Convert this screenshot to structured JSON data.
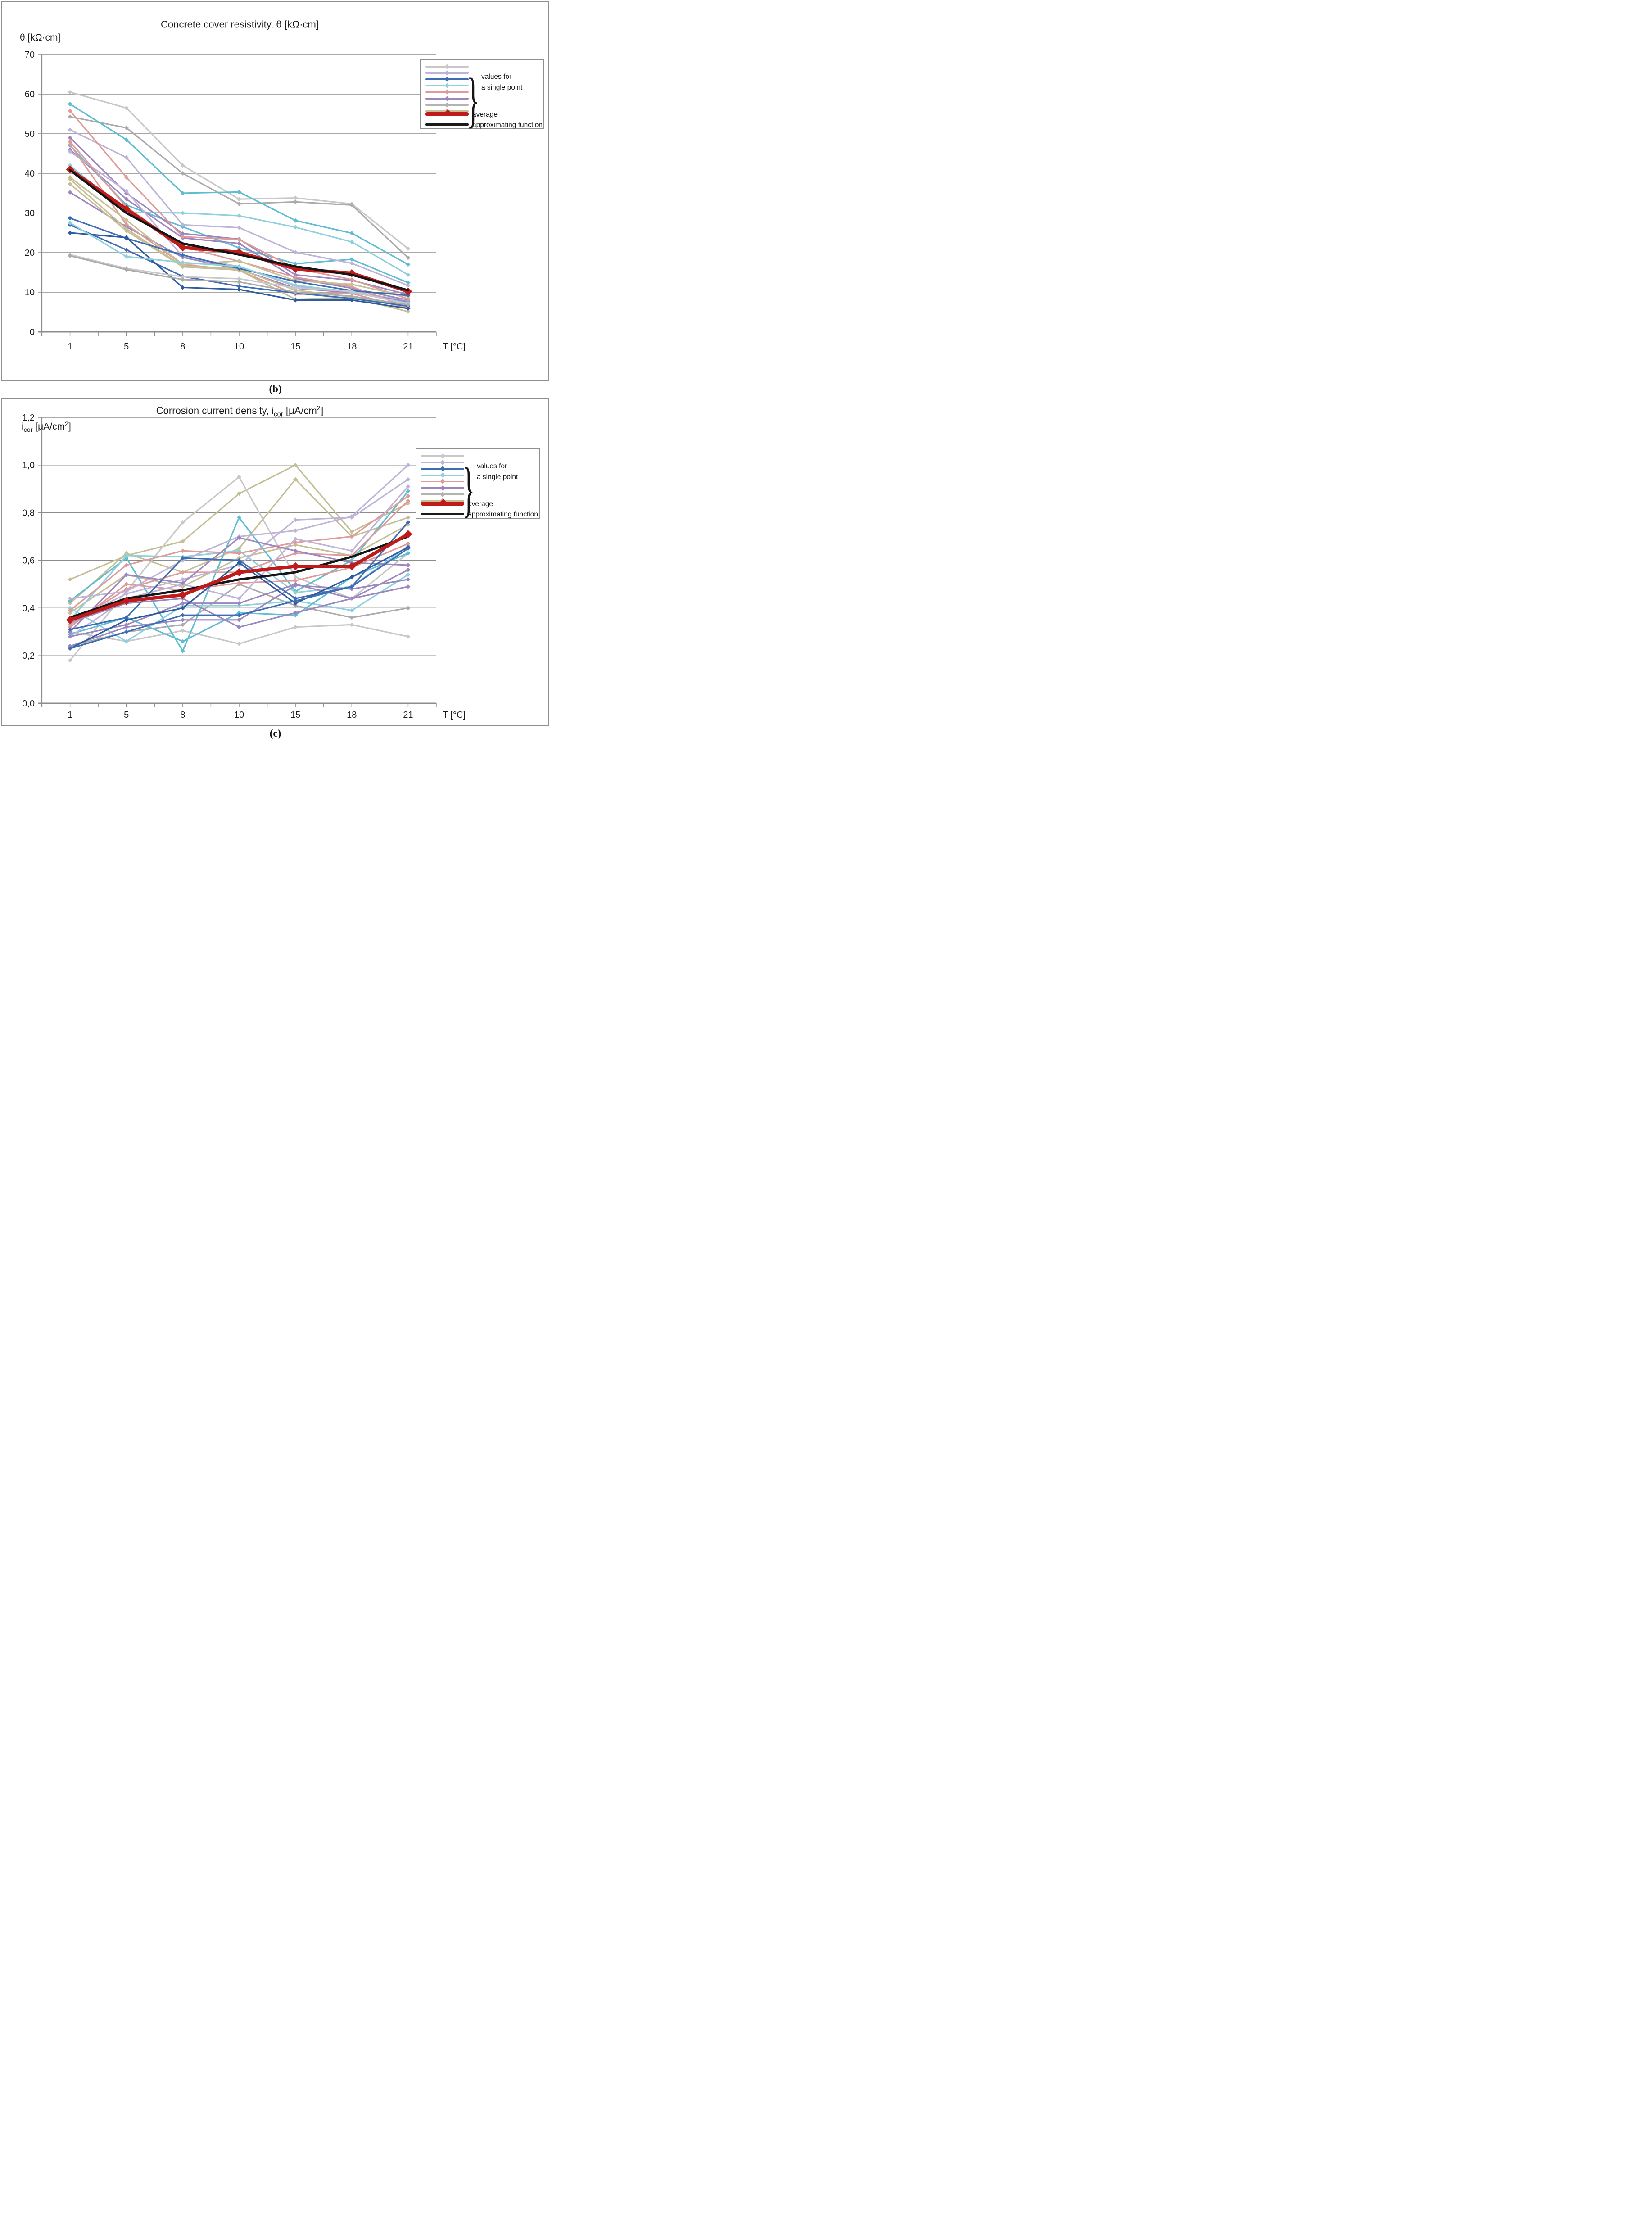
{
  "page": {
    "caption_b": "(b)",
    "caption_c": "(c)"
  },
  "chart_data": [
    {
      "type": "line",
      "title_parts": {
        "pre": "Concrete cover resistivity, θ [kΩ·cm]",
        "sub": "",
        "post": "",
        "sup": "",
        "end": ""
      },
      "y_axis_label_parts": {
        "pre": "θ [kΩ·cm]",
        "sub": "",
        "post": "",
        "sup": "",
        "end": ""
      },
      "x_axis_label": "T [°C]",
      "caption": "(b)",
      "categories": [
        "1",
        "5",
        "8",
        "10",
        "15",
        "18",
        "21"
      ],
      "x_values": [
        1,
        5,
        8,
        10,
        15,
        18,
        21
      ],
      "y_ticks": [
        "70",
        "60",
        "50",
        "40",
        "30",
        "20",
        "10",
        "0"
      ],
      "ylim": [
        0,
        70
      ],
      "y_step": 10,
      "grid": true,
      "legend": {
        "position": "top-right",
        "group_label": {
          "line1": "values for",
          "line2": "a single point"
        },
        "average_label": "average",
        "approx_label": "approximating function",
        "swatch_colors": [
          "#c8c8c8",
          "#beb3d8",
          "#3e6db5",
          "#8fd0dd",
          "#de9b99",
          "#9b86c0",
          "#b3b3b3",
          "#c6be94"
        ]
      },
      "series": [
        {
          "name": "single-point",
          "color": "#c8c8c8",
          "values": [
            60.5,
            56.5,
            42,
            33.5,
            33.8,
            32.3,
            21
          ]
        },
        {
          "name": "single-point",
          "color": "#ababab",
          "values": [
            54.3,
            51.5,
            40,
            32.3,
            32.8,
            32.0,
            18.7
          ]
        },
        {
          "name": "single-point",
          "color": "#5fbdd1",
          "values": [
            57.5,
            48.5,
            35,
            35.3,
            28.1,
            24.9,
            17.0
          ]
        },
        {
          "name": "single-point",
          "color": "#8fd0dd",
          "values": [
            42,
            30.2,
            30,
            29.3,
            26.4,
            22.7,
            14.4
          ]
        },
        {
          "name": "single-point",
          "color": "#5fbdd1",
          "values": [
            47,
            32,
            26.5,
            21.2,
            17.2,
            18.3,
            12.4
          ]
        },
        {
          "name": "single-point",
          "color": "#beb3d8",
          "values": [
            51,
            44,
            27,
            26.3,
            20.1,
            17.3,
            11.7
          ]
        },
        {
          "name": "single-point",
          "color": "#9b86c0",
          "values": [
            49,
            35,
            24.8,
            23.4,
            14.4,
            13.0,
            9.4
          ]
        },
        {
          "name": "single-point",
          "color": "#9b86c0",
          "values": [
            46,
            33.5,
            23.7,
            22.3,
            13.5,
            11.0,
            8.0
          ]
        },
        {
          "name": "single-point",
          "color": "#beb3d8",
          "values": [
            45.5,
            35.5,
            19.0,
            16.5,
            11.5,
            10.2,
            7.8
          ]
        },
        {
          "name": "single-point",
          "color": "#9b86c0",
          "values": [
            35.2,
            26.5,
            18.8,
            15.8,
            11.0,
            9.9,
            7.6
          ]
        },
        {
          "name": "single-point",
          "color": "#de9b99",
          "values": [
            55.8,
            39,
            24.0,
            23.3,
            16.0,
            13.2,
            8.3
          ]
        },
        {
          "name": "single-point",
          "color": "#de9b99",
          "values": [
            48,
            31.5,
            21.5,
            17.8,
            13.8,
            11.4,
            6.2
          ]
        },
        {
          "name": "single-point",
          "color": "#de9b99",
          "values": [
            47.3,
            27.1,
            17.0,
            15.5,
            9.5,
            9.7,
            5.9
          ]
        },
        {
          "name": "single-point",
          "color": "#c6be94",
          "values": [
            39,
            28.2,
            17.0,
            17.9,
            12.9,
            12.0,
            8.9
          ]
        },
        {
          "name": "single-point",
          "color": "#c6be94",
          "values": [
            38.5,
            26.0,
            16.6,
            15.9,
            10.5,
            8.8,
            6.6
          ]
        },
        {
          "name": "single-point",
          "color": "#c6be94",
          "values": [
            37.3,
            25.5,
            16.4,
            15.6,
            8.2,
            8.7,
            5.1
          ]
        },
        {
          "name": "single-point",
          "color": "#3e6db5",
          "values": [
            28.7,
            23.6,
            19.4,
            16.0,
            12.7,
            10.4,
            9.2
          ]
        },
        {
          "name": "single-point",
          "color": "#3e6db5",
          "values": [
            27.0,
            20.7,
            14.0,
            11.5,
            9.8,
            8.4,
            6.5
          ]
        },
        {
          "name": "single-point",
          "color": "#2e5b9e",
          "values": [
            25.0,
            23.8,
            11.2,
            10.7,
            8.0,
            8.0,
            5.9
          ]
        },
        {
          "name": "single-point",
          "color": "#8fd0dd",
          "values": [
            27.5,
            19.0,
            17.5,
            16.5,
            11.8,
            10.0,
            7.2
          ]
        },
        {
          "name": "single-point",
          "color": "#c8c8c8",
          "values": [
            19.5,
            16.0,
            13.9,
            13.4,
            11.1,
            10.2,
            7.0
          ]
        },
        {
          "name": "single-point",
          "color": "#ababab",
          "values": [
            19.2,
            15.7,
            13.2,
            12.6,
            10.0,
            9.0,
            6.8
          ]
        }
      ],
      "average": {
        "name": "average",
        "color": "#bf1b1b",
        "values": [
          41,
          31,
          21.3,
          20.1,
          15.9,
          14.8,
          10.2
        ]
      },
      "approximating_function": {
        "name": "approximating function",
        "color": "#151515",
        "values": [
          40.8,
          30.0,
          22.3,
          19.5,
          16.5,
          14.4,
          10.5
        ]
      }
    },
    {
      "type": "line",
      "title_parts": {
        "pre": "Corrosion current density, i",
        "sub": "cor",
        "post": " [μA/cm",
        "sup": "2",
        "end": "]"
      },
      "y_axis_label_parts": {
        "pre": "i",
        "sub": "cor",
        "post": " [μA/cm",
        "sup": "2",
        "end": "]"
      },
      "x_axis_label": "T [°C]",
      "caption": "(c)",
      "categories": [
        "1",
        "5",
        "8",
        "10",
        "15",
        "18",
        "21"
      ],
      "x_values": [
        1,
        5,
        8,
        10,
        15,
        18,
        21
      ],
      "y_ticks": [
        "1,2",
        "1,0",
        "0,8",
        "0,6",
        "0,4",
        "0,2",
        "0,0"
      ],
      "ylim": [
        0,
        1.2
      ],
      "y_step": 0.2,
      "grid": true,
      "legend": {
        "position": "top-right",
        "group_label": {
          "line1": "values for",
          "line2": "a single point"
        },
        "average_label": "average",
        "approx_label": "approximating function",
        "swatch_colors": [
          "#c8c8c8",
          "#beb3d8",
          "#3e6db5",
          "#8fd0dd",
          "#de9b99",
          "#9b86c0",
          "#b3b3b3",
          "#c6be94"
        ]
      },
      "series": [
        {
          "name": "single-point",
          "color": "#c6be94",
          "values": [
            0.52,
            0.62,
            0.68,
            0.88,
            1.0,
            0.72,
            0.84
          ]
        },
        {
          "name": "single-point",
          "color": "#c6be94",
          "values": [
            0.42,
            0.63,
            0.55,
            0.65,
            0.94,
            0.7,
            0.78
          ]
        },
        {
          "name": "single-point",
          "color": "#c6be94",
          "values": [
            0.38,
            0.54,
            0.49,
            0.61,
            0.665,
            0.62,
            0.75
          ]
        },
        {
          "name": "single-point",
          "color": "#c8c8c8",
          "values": [
            0.18,
            0.47,
            0.76,
            0.95,
            0.53,
            0.44,
            0.63
          ]
        },
        {
          "name": "single-point",
          "color": "#ababab",
          "values": [
            0.24,
            0.3,
            0.33,
            0.5,
            0.41,
            0.36,
            0.4
          ]
        },
        {
          "name": "single-point",
          "color": "#c8c8c8",
          "values": [
            0.3,
            0.26,
            0.305,
            0.25,
            0.32,
            0.33,
            0.28
          ]
        },
        {
          "name": "single-point",
          "color": "#5fbdd1",
          "values": [
            0.43,
            0.61,
            0.22,
            0.78,
            0.47,
            0.6,
            0.89
          ]
        },
        {
          "name": "single-point",
          "color": "#8fd0dd",
          "values": [
            0.4,
            0.26,
            0.41,
            0.41,
            0.43,
            0.39,
            0.54
          ]
        },
        {
          "name": "single-point",
          "color": "#5fbdd1",
          "values": [
            0.29,
            0.36,
            0.26,
            0.38,
            0.37,
            0.53,
            0.63
          ]
        },
        {
          "name": "single-point",
          "color": "#8fd0dd",
          "values": [
            0.35,
            0.62,
            0.615,
            0.64,
            0.465,
            0.49,
            0.66
          ]
        },
        {
          "name": "single-point",
          "color": "#de9b99",
          "values": [
            0.39,
            0.58,
            0.64,
            0.63,
            0.675,
            0.7,
            0.87
          ]
        },
        {
          "name": "single-point",
          "color": "#de9b99",
          "values": [
            0.33,
            0.48,
            0.55,
            0.55,
            0.63,
            0.62,
            0.85
          ]
        },
        {
          "name": "single-point",
          "color": "#de9b99",
          "values": [
            0.32,
            0.5,
            0.475,
            0.505,
            0.515,
            0.57,
            0.67
          ]
        },
        {
          "name": "single-point",
          "color": "#beb3d8",
          "values": [
            0.44,
            0.47,
            0.6,
            0.7,
            0.725,
            0.785,
            1.0
          ]
        },
        {
          "name": "single-point",
          "color": "#beb3d8",
          "values": [
            0.34,
            0.46,
            0.52,
            0.58,
            0.77,
            0.78,
            0.94
          ]
        },
        {
          "name": "single-point",
          "color": "#beb3d8",
          "values": [
            0.28,
            0.44,
            0.5,
            0.44,
            0.69,
            0.64,
            0.91
          ]
        },
        {
          "name": "single-point",
          "color": "#9b86c0",
          "values": [
            0.3,
            0.54,
            0.505,
            0.695,
            0.64,
            0.59,
            0.58
          ]
        },
        {
          "name": "single-point",
          "color": "#9b86c0",
          "values": [
            0.28,
            0.33,
            0.42,
            0.42,
            0.5,
            0.44,
            0.56
          ]
        },
        {
          "name": "single-point",
          "color": "#9b86c0",
          "values": [
            0.24,
            0.32,
            0.35,
            0.35,
            0.495,
            0.48,
            0.52
          ]
        },
        {
          "name": "single-point",
          "color": "#9b86c0",
          "values": [
            0.34,
            0.42,
            0.44,
            0.32,
            0.38,
            0.44,
            0.49
          ]
        },
        {
          "name": "single-point",
          "color": "#3e6db5",
          "values": [
            0.31,
            0.36,
            0.61,
            0.6,
            0.44,
            0.49,
            0.76
          ]
        },
        {
          "name": "single-point",
          "color": "#2e5b9e",
          "values": [
            0.23,
            0.35,
            0.4,
            0.59,
            0.42,
            0.53,
            0.655
          ]
        },
        {
          "name": "single-point",
          "color": "#3e6db5",
          "values": [
            0.23,
            0.3,
            0.37,
            0.37,
            0.43,
            0.49,
            0.65
          ]
        }
      ],
      "average": {
        "name": "average",
        "color": "#bf1b1b",
        "values": [
          0.35,
          0.43,
          0.455,
          0.55,
          0.575,
          0.575,
          0.71
        ]
      },
      "approximating_function": {
        "name": "approximating function",
        "color": "#151515",
        "values": [
          0.36,
          0.44,
          0.475,
          0.52,
          0.55,
          0.615,
          0.7
        ]
      }
    }
  ]
}
